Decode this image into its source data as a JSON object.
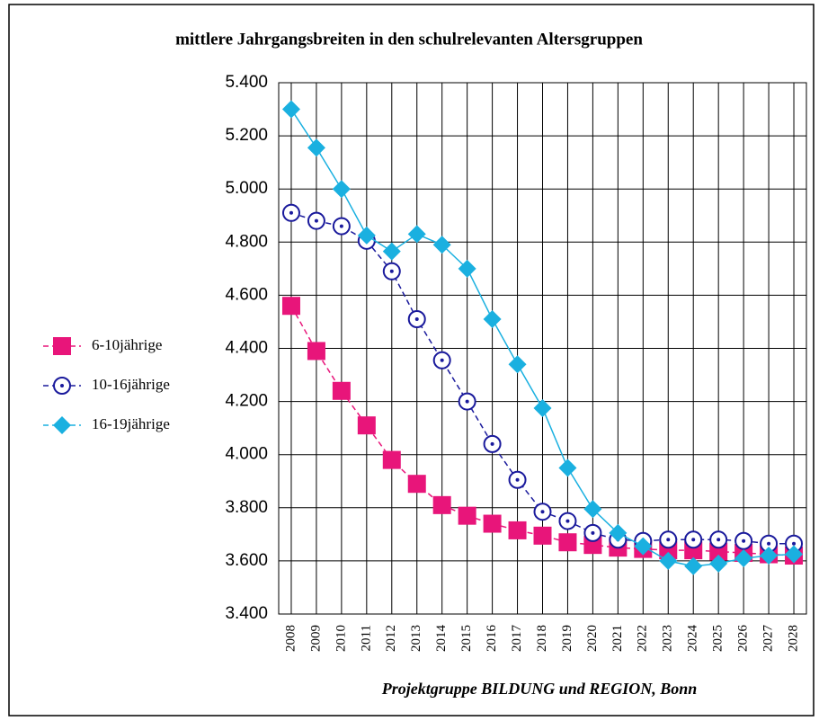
{
  "chart_data": {
    "type": "line",
    "title": "mittlere Jahrgangsbreiten in den schulrelevanten Altersgruppen",
    "footer": "Projektgruppe BILDUNG und REGION, Bonn",
    "categories": [
      "2008",
      "2009",
      "2010",
      "2011",
      "2012",
      "2013",
      "2014",
      "2015",
      "2016",
      "2017",
      "2018",
      "2019",
      "2020",
      "2021",
      "2022",
      "2023",
      "2024",
      "2025",
      "2026",
      "2027",
      "2028"
    ],
    "series": [
      {
        "name": "6-10jährige",
        "color": "#e8157a",
        "marker": "square",
        "dashed": true,
        "values": [
          4560,
          4390,
          4240,
          4110,
          3980,
          3890,
          3810,
          3770,
          3740,
          3715,
          3695,
          3670,
          3660,
          3650,
          3645,
          3640,
          3640,
          3635,
          3630,
          3625,
          3620
        ]
      },
      {
        "name": "10-16jährige",
        "color": "#1a1a9c",
        "marker": "circle",
        "dashed": true,
        "values": [
          4910,
          4880,
          4860,
          4805,
          4690,
          4510,
          4355,
          4200,
          4040,
          3905,
          3785,
          3750,
          3705,
          3680,
          3675,
          3680,
          3680,
          3680,
          3675,
          3665,
          3665
        ]
      },
      {
        "name": "16-19jährige",
        "color": "#1ab0e0",
        "marker": "diamond",
        "dashed": false,
        "values": [
          5300,
          5155,
          5000,
          4825,
          4765,
          4830,
          4790,
          4700,
          4510,
          4340,
          4175,
          3950,
          3795,
          3705,
          3655,
          3600,
          3580,
          3590,
          3610,
          3620,
          3625
        ]
      }
    ],
    "ylim": [
      3400,
      5400
    ],
    "yticks": [
      {
        "value": 3400,
        "label": "3.400"
      },
      {
        "value": 3600,
        "label": "3.600"
      },
      {
        "value": 3800,
        "label": "3.800"
      },
      {
        "value": 4000,
        "label": "4.000"
      },
      {
        "value": 4200,
        "label": "4.200"
      },
      {
        "value": 4400,
        "label": "4.400"
      },
      {
        "value": 4600,
        "label": "4.600"
      },
      {
        "value": 4800,
        "label": "4.800"
      },
      {
        "value": 5000,
        "label": "5.000"
      },
      {
        "value": 5200,
        "label": "5.200"
      },
      {
        "value": 5400,
        "label": "5.400"
      }
    ],
    "grid": true,
    "legend": "left"
  }
}
